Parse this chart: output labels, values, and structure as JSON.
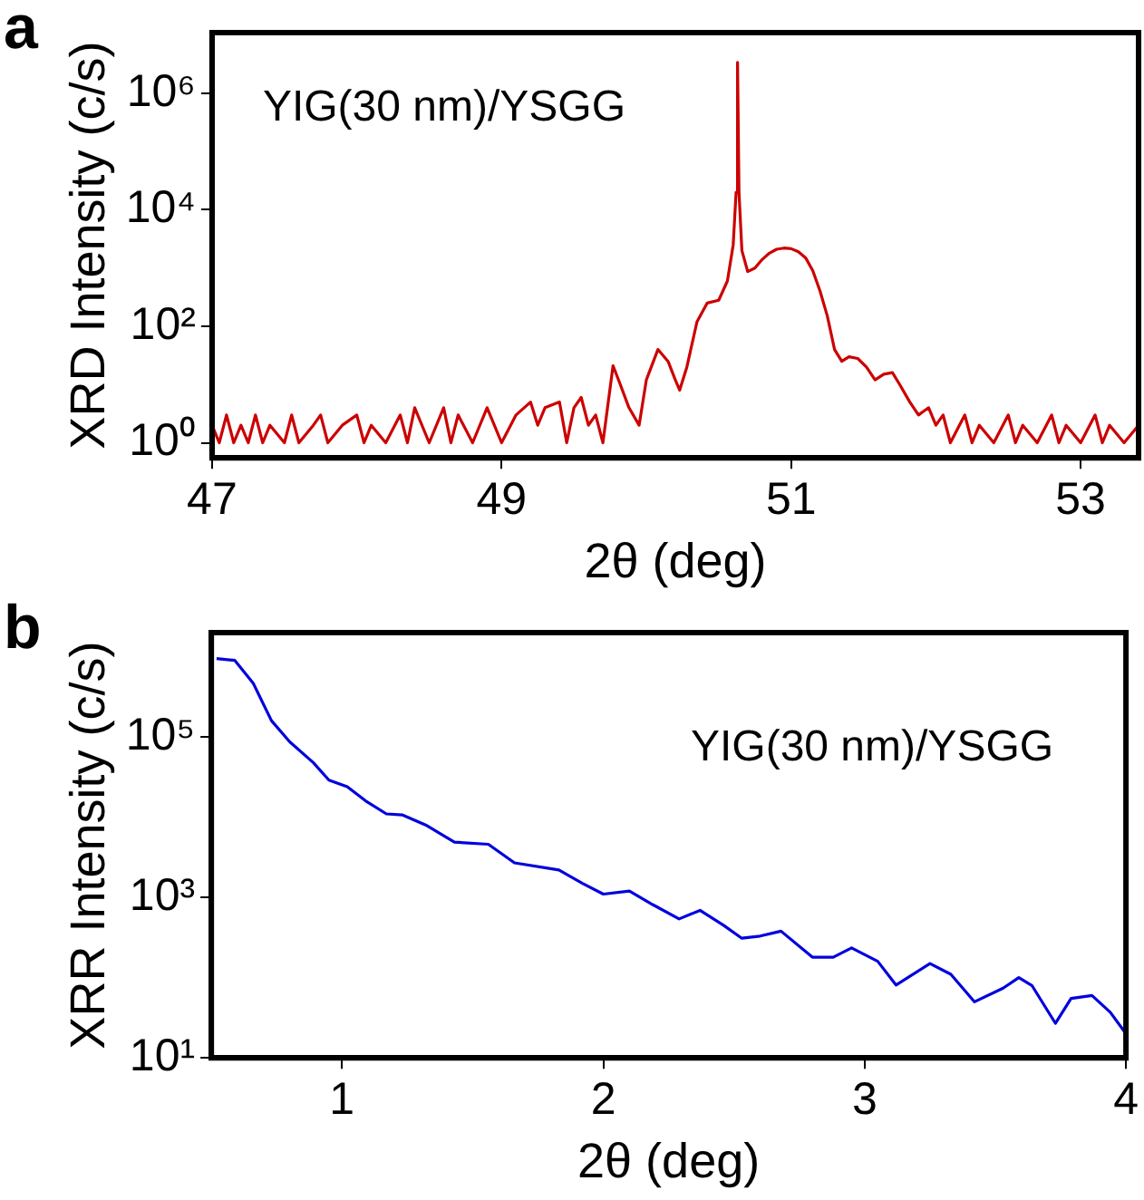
{
  "chart_data": [
    {
      "type": "line",
      "title": "a",
      "xlabel": "2θ (deg)",
      "ylabel": "XRD Intensity (c/s)",
      "log": "y",
      "grid": false,
      "legend": false,
      "marker": "none",
      "line_style": "solid",
      "annotations": [
        "YIG(30 nm)/YSGG"
      ],
      "xlim": [
        47,
        53.4
      ],
      "xticks": [
        47,
        49,
        51,
        53
      ],
      "ylim": [
        0.55,
        11000000.0
      ],
      "yticks": [
        {
          "value": 1,
          "label": "10⁰"
        },
        {
          "value": 100,
          "label": "10²"
        },
        {
          "value": 10000,
          "label": "10⁴"
        },
        {
          "value": 1000000,
          "label": "10⁶"
        }
      ],
      "series": [
        {
          "color": "#cc0000",
          "x": [
            47.0,
            47.05,
            47.1,
            47.15,
            47.2,
            47.25,
            47.3,
            47.35,
            47.4,
            47.5,
            47.55,
            47.6,
            47.7,
            47.75,
            47.8,
            47.9,
            48.0,
            48.05,
            48.1,
            48.2,
            48.3,
            48.35,
            48.4,
            48.5,
            48.6,
            48.65,
            48.7,
            48.8,
            48.9,
            48.95,
            49.0,
            49.1,
            49.2,
            49.25,
            49.3,
            49.4,
            49.45,
            49.5,
            49.55,
            49.6,
            49.65,
            49.7,
            49.77,
            49.82,
            49.88,
            49.95,
            50.0,
            50.08,
            50.15,
            50.2,
            50.23,
            50.28,
            50.35,
            50.42,
            50.5,
            50.56,
            50.6,
            50.62,
            50.63,
            50.64,
            50.66,
            50.7,
            50.75,
            50.8,
            50.85,
            50.9,
            50.95,
            51.0,
            51.05,
            51.1,
            51.15,
            51.2,
            51.25,
            51.3,
            51.35,
            51.4,
            51.46,
            51.52,
            51.58,
            51.64,
            51.7,
            51.75,
            51.82,
            51.88,
            51.95,
            52.0,
            52.05,
            52.1,
            52.2,
            52.25,
            52.3,
            52.4,
            52.5,
            52.55,
            52.6,
            52.7,
            52.8,
            52.85,
            52.9,
            53.0,
            53.1,
            53.15,
            53.2,
            53.3,
            53.4
          ],
          "values": [
            2,
            1,
            3,
            1,
            2,
            1,
            3,
            1,
            2,
            1,
            3,
            1,
            2,
            3,
            1,
            2,
            3,
            1,
            2,
            1,
            3,
            1,
            4,
            1,
            4,
            1,
            3,
            1,
            4,
            2,
            1,
            3,
            5,
            2,
            4,
            5,
            1,
            4,
            6,
            2,
            3,
            1,
            21,
            10,
            4,
            2,
            12,
            40,
            25,
            12,
            8,
            20,
            120,
            250,
            280,
            600,
            2500,
            20000,
            3400000,
            20000,
            2000,
            870,
            1000,
            1400,
            1800,
            2100,
            2200,
            2150,
            1900,
            1500,
            900,
            400,
            150,
            40,
            25,
            30,
            28,
            20,
            12,
            15,
            16,
            10,
            5,
            3,
            4,
            2,
            3,
            1,
            3,
            1,
            2,
            1,
            3,
            1,
            2,
            1,
            3,
            1,
            2,
            1,
            3,
            1,
            2,
            1,
            2
          ]
        }
      ]
    },
    {
      "type": "line",
      "title": "b",
      "xlabel": "2θ (deg)",
      "ylabel": "XRR Intensity (c/s)",
      "log": "y",
      "grid": false,
      "legend": false,
      "marker": "none",
      "line_style": "solid",
      "annotations": [
        "YIG(30 nm)/YSGG"
      ],
      "xlim": [
        0.5,
        4.0
      ],
      "xticks": [
        1,
        2,
        3,
        4
      ],
      "ylim": [
        10,
        2000000
      ],
      "yticks": [
        {
          "value": 10,
          "label": "10¹"
        },
        {
          "value": 1000,
          "label": "10³"
        },
        {
          "value": 100000,
          "label": "10⁵"
        }
      ],
      "series": [
        {
          "color": "#0000dd",
          "x": [
            0.52,
            0.59,
            0.66,
            0.73,
            0.8,
            0.89,
            0.95,
            1.02,
            1.09,
            1.17,
            1.23,
            1.32,
            1.43,
            1.56,
            1.66,
            1.83,
            1.92,
            2.0,
            2.1,
            2.19,
            2.29,
            2.37,
            2.46,
            2.53,
            2.6,
            2.68,
            2.8,
            2.88,
            2.95,
            3.05,
            3.12,
            3.25,
            3.33,
            3.42,
            3.53,
            3.59,
            3.64,
            3.73,
            3.79,
            3.87,
            3.94,
            4.0
          ],
          "values": [
            950000,
            900000,
            470000,
            160000,
            87000,
            48000,
            29000,
            24000,
            16000,
            11000,
            10700,
            8000,
            4900,
            4600,
            2700,
            2200,
            1500,
            1100,
            1200,
            810,
            540,
            690,
            450,
            310,
            330,
            380,
            180,
            180,
            235,
            160,
            81,
            150,
            110,
            50,
            74,
            100,
            80,
            27,
            55,
            60,
            37,
            20
          ]
        }
      ]
    }
  ]
}
